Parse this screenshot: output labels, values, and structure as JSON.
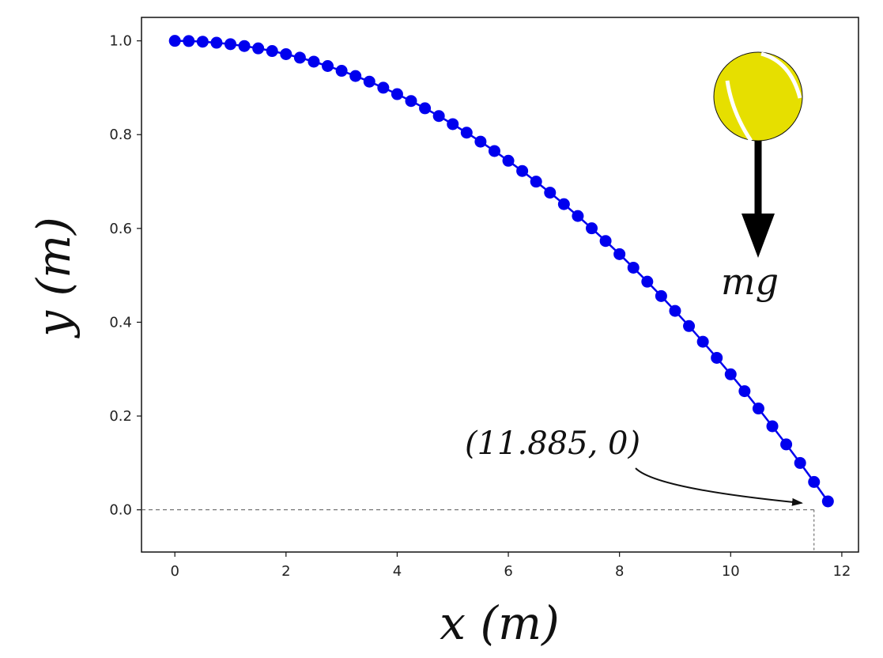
{
  "chart_data": {
    "type": "scatter",
    "xlabel": "x (m)",
    "ylabel": "y (m)",
    "xlim": [
      -0.6,
      12.3
    ],
    "ylim": [
      -0.09,
      1.05
    ],
    "x_ticks": [
      0,
      2,
      4,
      6,
      8,
      10,
      12
    ],
    "y_ticks": [
      0.0,
      0.2,
      0.4,
      0.6,
      0.8,
      1.0
    ],
    "x_tick_labels": [
      "0",
      "2",
      "4",
      "6",
      "8",
      "10",
      "12"
    ],
    "y_tick_labels": [
      "0.0",
      "0.2",
      "0.4",
      "0.6",
      "0.8",
      "1.0"
    ],
    "grid": false,
    "series": [
      {
        "color": "#0000ee",
        "marker": "circle",
        "line": true,
        "x": [
          0.0,
          0.25,
          0.5,
          0.75,
          1.0,
          1.25,
          1.5,
          1.75,
          2.0,
          2.25,
          2.5,
          2.75,
          3.0,
          3.25,
          3.5,
          3.75,
          4.0,
          4.25,
          4.5,
          4.75,
          5.0,
          5.25,
          5.5,
          5.75,
          6.0,
          6.25,
          6.5,
          6.75,
          7.0,
          7.25,
          7.5,
          7.75,
          8.0,
          8.25,
          8.5,
          8.75,
          9.0,
          9.25,
          9.5,
          9.75,
          10.0,
          10.25,
          10.5,
          10.75,
          11.0,
          11.25,
          11.5,
          11.75
        ],
        "y": [
          1.0,
          0.9996,
          0.9982,
          0.996,
          0.9929,
          0.9889,
          0.984,
          0.9783,
          0.9716,
          0.9641,
          0.9556,
          0.9463,
          0.9361,
          0.925,
          0.913,
          0.9001,
          0.8864,
          0.8717,
          0.8562,
          0.8397,
          0.8224,
          0.8042,
          0.7851,
          0.7651,
          0.7443,
          0.7225,
          0.6998,
          0.6763,
          0.6518,
          0.6265,
          0.6003,
          0.5732,
          0.5452,
          0.5163,
          0.4865,
          0.4558,
          0.4242,
          0.3918,
          0.3584,
          0.3241,
          0.289,
          0.253,
          0.216,
          0.1782,
          0.1395,
          0.0999,
          0.0594,
          0.018
        ]
      }
    ],
    "reference_lines": {
      "y0": 0.0,
      "x_landing": 11.5
    },
    "annotation": {
      "text": "(11.885, 0)",
      "target_x": 11.5,
      "target_y": 0.0
    },
    "force_label": "mg",
    "ball_color": "#e6df00"
  }
}
